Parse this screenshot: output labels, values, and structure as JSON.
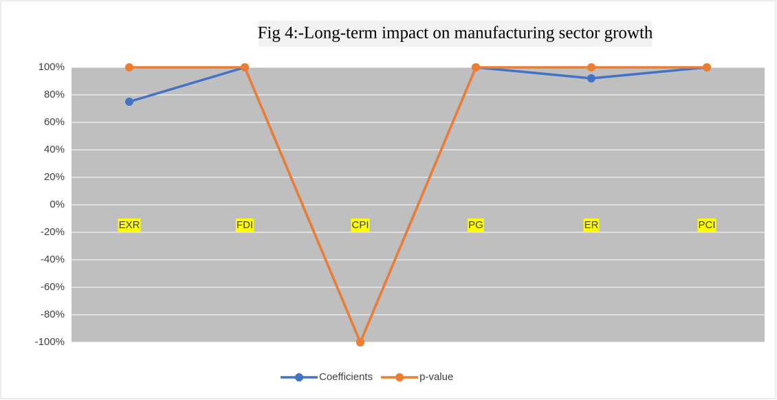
{
  "chart_data": {
    "type": "line",
    "title": "Fig 4:-Long-term impact on manufacturing sector growth",
    "categories": [
      "EXR",
      "FDI",
      "CPI",
      "PG",
      "ER",
      "PCI"
    ],
    "series": [
      {
        "name": "Coefficients",
        "color": "#4472c4",
        "values": [
          75,
          100,
          -100,
          100,
          92,
          100
        ]
      },
      {
        "name": "p-value",
        "color": "#ed7d31",
        "values": [
          100,
          100,
          -100,
          100,
          100,
          100
        ]
      }
    ],
    "ylim": [
      -100,
      100
    ],
    "yticks": [
      {
        "value": -100,
        "label": "-100%"
      },
      {
        "value": -80,
        "label": "-80%"
      },
      {
        "value": -60,
        "label": "-60%"
      },
      {
        "value": -40,
        "label": "-40%"
      },
      {
        "value": -20,
        "label": "-20%"
      },
      {
        "value": 0,
        "label": "0%"
      },
      {
        "value": 20,
        "label": "20%"
      },
      {
        "value": 40,
        "label": "40%"
      },
      {
        "value": 60,
        "label": "60%"
      },
      {
        "value": 80,
        "label": "80%"
      },
      {
        "value": 100,
        "label": "100%"
      }
    ],
    "grid": true,
    "legend": "bottom",
    "plot_background": "#bfbfbf",
    "category_label_highlight": "#ffff00"
  }
}
